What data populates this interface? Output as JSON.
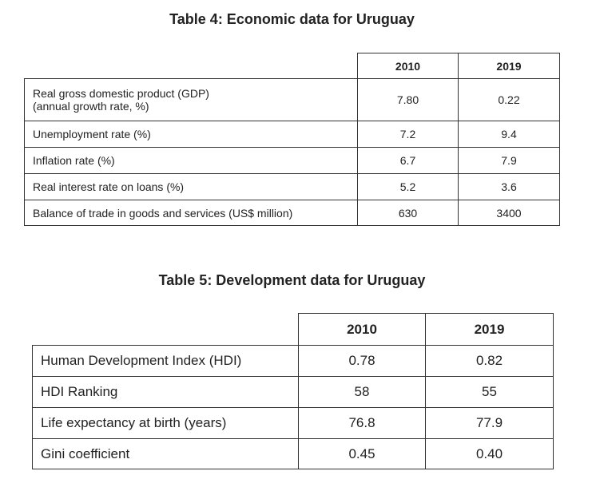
{
  "table4": {
    "title": "Table 4: Economic data for Uruguay",
    "columns": [
      "2010",
      "2019"
    ],
    "rows": [
      {
        "label": [
          "Real gross domestic product (GDP)",
          "(annual growth rate, %)"
        ],
        "values": [
          "7.80",
          "0.22"
        ]
      },
      {
        "label": [
          "Unemployment rate (%)"
        ],
        "values": [
          "7.2",
          "9.4"
        ]
      },
      {
        "label": [
          "Inflation rate (%)"
        ],
        "values": [
          "6.7",
          "7.9"
        ]
      },
      {
        "label": [
          "Real interest rate on loans (%)"
        ],
        "values": [
          "5.2",
          "3.6"
        ]
      },
      {
        "label": [
          "Balance of trade in goods and services (US$ million)"
        ],
        "values": [
          "630",
          "3400"
        ]
      }
    ]
  },
  "table5": {
    "title": "Table 5: Development data for Uruguay",
    "columns": [
      "2010",
      "2019"
    ],
    "rows": [
      {
        "label": [
          "Human Development Index (HDI)"
        ],
        "values": [
          "0.78",
          "0.82"
        ]
      },
      {
        "label": [
          "HDI Ranking"
        ],
        "values": [
          "58",
          "55"
        ]
      },
      {
        "label": [
          "Life expectancy at birth (years)"
        ],
        "values": [
          "76.8",
          "77.9"
        ]
      },
      {
        "label": [
          "Gini coefficient"
        ],
        "values": [
          "0.45",
          "0.40"
        ]
      }
    ]
  }
}
